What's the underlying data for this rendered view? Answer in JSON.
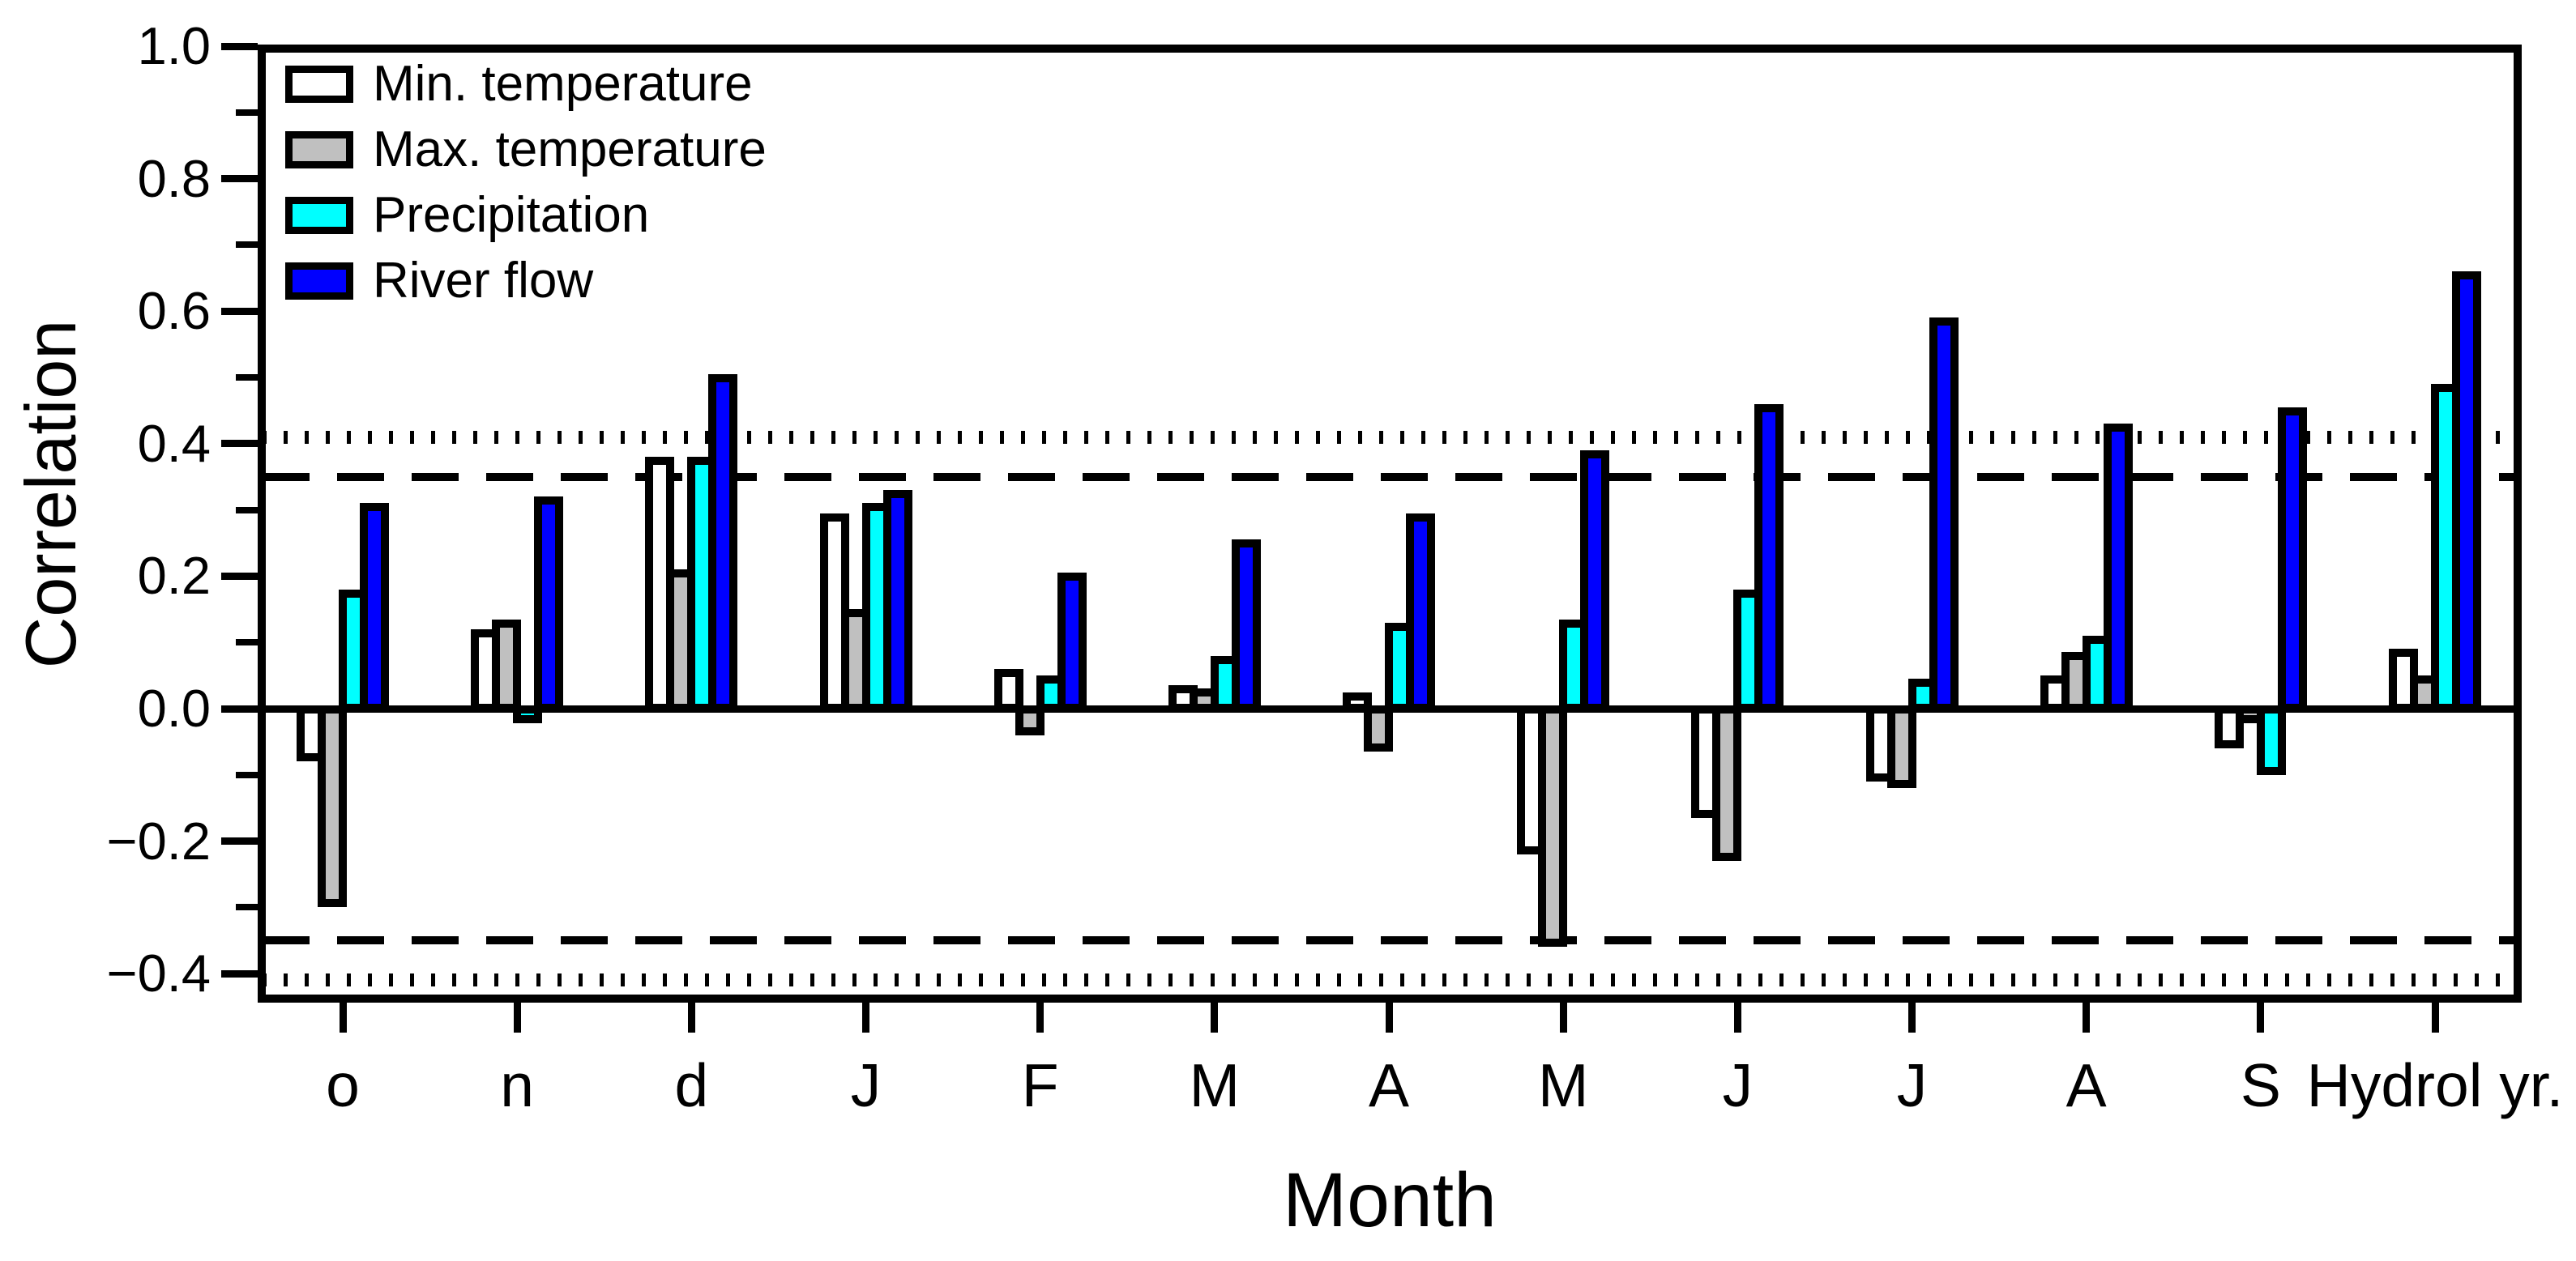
{
  "chart_data": {
    "type": "bar",
    "title": "",
    "xlabel": "Month",
    "ylabel": "Correlation",
    "categories": [
      "o",
      "n",
      "d",
      "J",
      "F",
      "M",
      "A",
      "M",
      "J",
      "J",
      "A",
      "S",
      "Hydrol yr."
    ],
    "series": [
      {
        "name": "Min. temperature",
        "color": "#ffffff",
        "values": [
          -0.08,
          0.12,
          0.38,
          0.295,
          0.06,
          0.035,
          0.025,
          -0.22,
          -0.165,
          -0.11,
          0.05,
          -0.06,
          0.09
        ]
      },
      {
        "name": "Max. temperature",
        "color": "#c0c0c0",
        "values": [
          -0.3,
          0.135,
          0.21,
          0.15,
          -0.04,
          0.03,
          -0.065,
          -0.36,
          -0.23,
          -0.12,
          0.085,
          -0.02,
          0.05
        ]
      },
      {
        "name": "Precipitation",
        "color": "#00ffff",
        "values": [
          0.18,
          -0.015,
          0.38,
          0.31,
          0.05,
          0.08,
          0.13,
          0.135,
          0.18,
          0.045,
          0.11,
          -0.1,
          0.49
        ]
      },
      {
        "name": "River flow",
        "color": "#0000ff",
        "values": [
          0.31,
          0.32,
          0.505,
          0.33,
          0.205,
          0.255,
          0.295,
          0.39,
          0.46,
          0.59,
          0.43,
          0.455,
          0.66
        ]
      }
    ],
    "ylim": [
      -0.44,
      1.0
    ],
    "yticks": [
      {
        "v": 1.0,
        "label": "1.0"
      },
      {
        "v": 0.8,
        "label": "0.8"
      },
      {
        "v": 0.6,
        "label": "0.6"
      },
      {
        "v": 0.4,
        "label": "0.4"
      },
      {
        "v": 0.2,
        "label": "0.2"
      },
      {
        "v": 0.0,
        "label": "0.0"
      },
      {
        "v": -0.2,
        "label": "−0.2"
      },
      {
        "v": -0.4,
        "label": "−0.4"
      }
    ],
    "yticks_minor": [
      0.9,
      0.7,
      0.5,
      0.3,
      0.1,
      -0.1,
      -0.3
    ],
    "reference_lines": [
      {
        "style": "dotted",
        "value": 0.41
      },
      {
        "style": "dashed",
        "value": 0.35
      },
      {
        "style": "dashed",
        "value": -0.35
      },
      {
        "style": "dotted",
        "value": -0.41
      }
    ],
    "zero_line": 0.0,
    "legend_position": "top-left",
    "grid": false,
    "axis_color": "#000000",
    "background": "#ffffff"
  }
}
